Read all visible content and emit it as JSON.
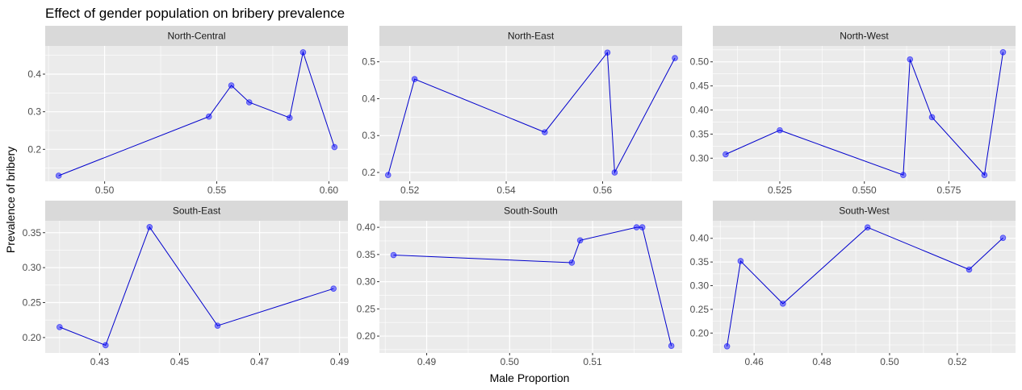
{
  "chart_data": {
    "type": "scatter",
    "title": "Effect of gender population on bribery prevalence",
    "xlabel": "Male Proportion",
    "ylabel": "Prevalence of bribery",
    "facet_scales": "free",
    "grid": true,
    "point_color": "#0000FF",
    "line_color": "#0000CD",
    "panel_background": "#EBEBEB",
    "strip_background": "#D9D9D9",
    "panels": [
      {
        "name": "North-Central",
        "xlim": [
          0.4735,
          0.6085
        ],
        "ylim": [
          0.115,
          0.475
        ],
        "xticks": [
          0.5,
          0.55,
          0.6
        ],
        "xtick_labels": [
          "0.50",
          "0.55",
          "0.60"
        ],
        "yticks": [
          0.2,
          0.3,
          0.4
        ],
        "ytick_labels": [
          "0.2",
          "0.3",
          "0.4"
        ],
        "x": [
          0.4795,
          0.5465,
          0.5565,
          0.5645,
          0.5825,
          0.5885,
          0.6025
        ],
        "y": [
          0.13,
          0.287,
          0.37,
          0.325,
          0.284,
          0.458,
          0.206
        ]
      },
      {
        "name": "North-East",
        "xlim": [
          0.5137,
          0.5765
        ],
        "ylim": [
          0.176,
          0.543
        ],
        "xticks": [
          0.52,
          0.54,
          0.56
        ],
        "xtick_labels": [
          "0.52",
          "0.54",
          "0.56"
        ],
        "yticks": [
          0.2,
          0.3,
          0.4,
          0.5
        ],
        "ytick_labels": [
          "0.2",
          "0.3",
          "0.4",
          "0.5"
        ],
        "x": [
          0.5155,
          0.521,
          0.548,
          0.561,
          0.5625,
          0.575
        ],
        "y": [
          0.193,
          0.453,
          0.309,
          0.525,
          0.2,
          0.51
        ]
      },
      {
        "name": "North-West",
        "xlim": [
          0.5052,
          0.5947
        ],
        "ylim": [
          0.252,
          0.533
        ],
        "xticks": [
          0.525,
          0.55,
          0.575
        ],
        "xtick_labels": [
          "0.525",
          "0.550",
          "0.575"
        ],
        "yticks": [
          0.3,
          0.35,
          0.4,
          0.45,
          0.5
        ],
        "ytick_labels": [
          "0.30",
          "0.35",
          "0.40",
          "0.45",
          "0.50"
        ],
        "x": [
          0.509,
          0.525,
          0.5615,
          0.5635,
          0.57,
          0.5855,
          0.591
        ],
        "y": [
          0.308,
          0.358,
          0.265,
          0.505,
          0.385,
          0.265,
          0.52
        ]
      },
      {
        "name": "South-East",
        "xlim": [
          0.4164,
          0.4921
        ],
        "ylim": [
          0.178,
          0.367
        ],
        "xticks": [
          0.43,
          0.45,
          0.47,
          0.49
        ],
        "xtick_labels": [
          "0.43",
          "0.45",
          "0.47",
          "0.49"
        ],
        "yticks": [
          0.2,
          0.25,
          0.3,
          0.35
        ],
        "ytick_labels": [
          "0.20",
          "0.25",
          "0.30",
          "0.35"
        ],
        "x": [
          0.42,
          0.4315,
          0.4425,
          0.4595,
          0.4885
        ],
        "y": [
          0.215,
          0.189,
          0.358,
          0.217,
          0.27
        ]
      },
      {
        "name": "South-South",
        "xlim": [
          0.4843,
          0.5208
        ],
        "ylim": [
          0.169,
          0.412
        ],
        "xticks": [
          0.49,
          0.5,
          0.51
        ],
        "xtick_labels": [
          "0.49",
          "0.50",
          "0.51"
        ],
        "yticks": [
          0.2,
          0.25,
          0.3,
          0.35,
          0.4
        ],
        "ytick_labels": [
          "0.20",
          "0.25",
          "0.30",
          "0.35",
          "0.40"
        ],
        "x": [
          0.486,
          0.5075,
          0.5085,
          0.5153,
          0.516,
          0.5195
        ],
        "y": [
          0.349,
          0.335,
          0.376,
          0.4,
          0.4,
          0.182
        ]
      },
      {
        "name": "South-West",
        "xlim": [
          0.4478,
          0.5372
        ],
        "ylim": [
          0.158,
          0.437
        ],
        "xticks": [
          0.46,
          0.48,
          0.5,
          0.52
        ],
        "xtick_labels": [
          "0.46",
          "0.48",
          "0.50",
          "0.52"
        ],
        "yticks": [
          0.2,
          0.25,
          0.3,
          0.35,
          0.4
        ],
        "ytick_labels": [
          "0.20",
          "0.25",
          "0.30",
          "0.35",
          "0.40"
        ],
        "x": [
          0.452,
          0.456,
          0.4685,
          0.4935,
          0.5235,
          0.5335
        ],
        "y": [
          0.172,
          0.352,
          0.262,
          0.423,
          0.334,
          0.401
        ]
      }
    ]
  }
}
